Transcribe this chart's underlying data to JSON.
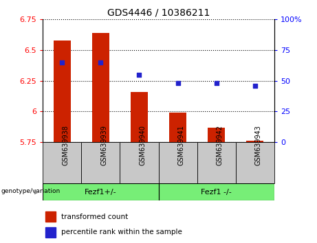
{
  "title": "GDS4446 / 10386211",
  "samples": [
    "GSM639938",
    "GSM639939",
    "GSM639940",
    "GSM639941",
    "GSM639942",
    "GSM639943"
  ],
  "bar_values": [
    6.58,
    6.64,
    6.16,
    5.99,
    5.87,
    5.762
  ],
  "percentile_values": [
    65,
    65,
    55,
    48,
    48,
    46
  ],
  "bar_bottom": 5.75,
  "ylim_left": [
    5.75,
    6.75
  ],
  "ylim_right": [
    0,
    100
  ],
  "yticks_left": [
    5.75,
    6.0,
    6.25,
    6.5,
    6.75
  ],
  "ytick_labels_left": [
    "5.75",
    "6",
    "6.25",
    "6.5",
    "6.75"
  ],
  "yticks_right": [
    0,
    25,
    50,
    75,
    100
  ],
  "ytick_labels_right": [
    "0",
    "25",
    "50",
    "75",
    "100%"
  ],
  "bar_color": "#cc2200",
  "dot_color": "#2222cc",
  "group1_label": "Fezf1+/-",
  "group2_label": "Fezf1 -/-",
  "group_bg_color": "#77ee77",
  "sample_bg_color": "#c8c8c8",
  "legend_red_label": "transformed count",
  "legend_blue_label": "percentile rank within the sample",
  "genotype_label": "genotype/variation",
  "title_fontsize": 10,
  "axis_fontsize": 8,
  "sample_fontsize": 7,
  "group_fontsize": 8,
  "legend_fontsize": 7.5
}
